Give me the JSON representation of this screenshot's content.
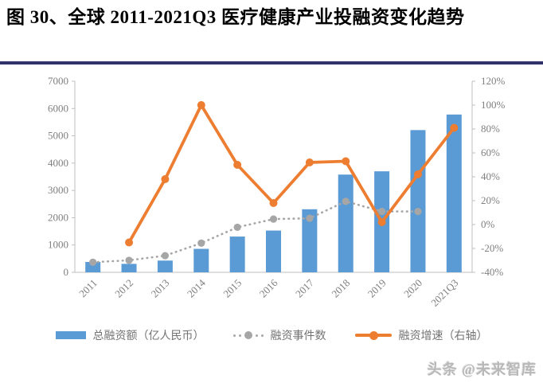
{
  "page": {
    "title": "图 30、全球 2011-2021Q3 医疗健康产业投融资变化趋势",
    "watermark": "头条 @未来智库"
  },
  "colors": {
    "bar_blue": "#5B9BD5",
    "events_gray": "#A6A6A6",
    "growth_orange": "#ED7D31",
    "axis_line": "#BFBFBF",
    "tick_text": "#7f7f7f",
    "title_underline": "#2f3367"
  },
  "chart_data": {
    "type": "bar",
    "subtype": "combo-bar-line-dual-axis",
    "title": "全球 2011-2021Q3 医疗健康产业投融资变化趋势",
    "categories": [
      "2011",
      "2012",
      "2013",
      "2014",
      "2015",
      "2016",
      "2017",
      "2018",
      "2019",
      "2020",
      "2021Q3"
    ],
    "series": [
      {
        "name": "总融资额（亿人民币）",
        "type": "bar",
        "axis": "left",
        "color": "#5B9BD5",
        "values": [
          380,
          310,
          430,
          860,
          1310,
          1530,
          2310,
          3580,
          3700,
          5210,
          5780
        ]
      },
      {
        "name": "融资事件数",
        "type": "dotted-line",
        "axis": "left",
        "color": "#A6A6A6",
        "values": [
          370,
          440,
          610,
          1070,
          1650,
          1950,
          1980,
          2600,
          2230,
          2230,
          null
        ]
      },
      {
        "name": "融资增速（右轴）",
        "type": "line",
        "axis": "right",
        "color": "#ED7D31",
        "values": [
          null,
          -15,
          38,
          100,
          50,
          18,
          52,
          53,
          2,
          42,
          81
        ]
      }
    ],
    "left_axis": {
      "min": 0,
      "max": 7000,
      "step": 1000
    },
    "right_axis": {
      "min": -40,
      "max": 120,
      "step": 20,
      "suffix": "%"
    },
    "grid": false,
    "legend_position": "bottom",
    "x_label_rotation": -45
  }
}
